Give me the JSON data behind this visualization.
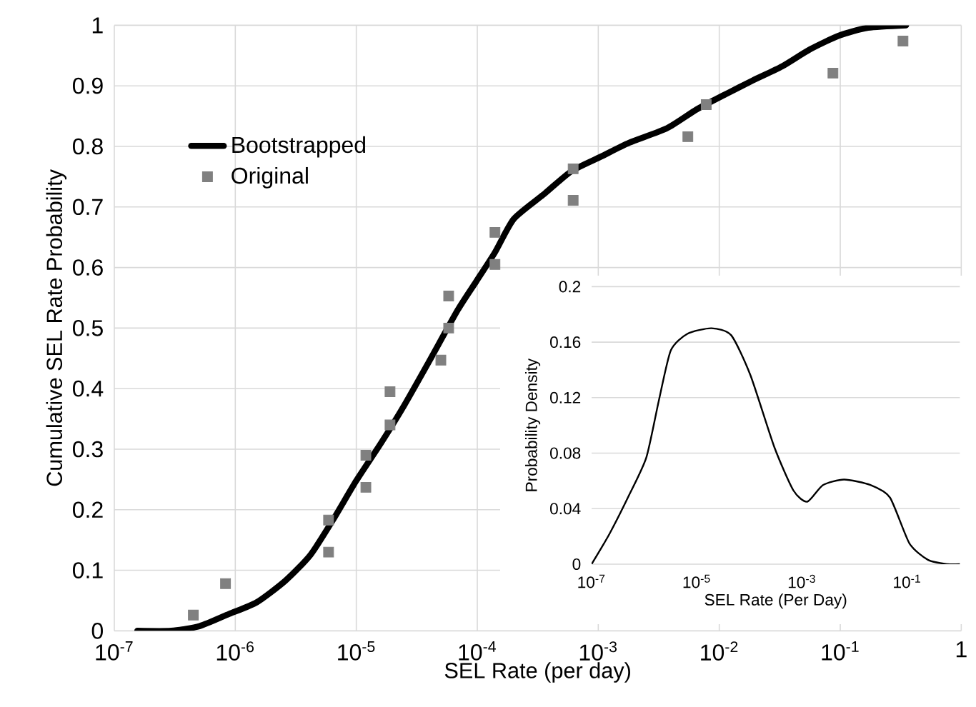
{
  "chart_data": [
    {
      "type": "line",
      "xlabel": "SEL Rate (per day)",
      "ylabel": "Cumulative SEL Rate Probability",
      "log": "x",
      "grid": true,
      "legend": "top left",
      "xlim": [
        1e-07,
        1
      ],
      "ylim": [
        0,
        1
      ],
      "xticks": [
        {
          "value": 1e-07,
          "label": "10$^{-7}$"
        },
        {
          "value": 1e-06,
          "label": "10$^{-6}$"
        },
        {
          "value": 1e-05,
          "label": "10$^{-5}$"
        },
        {
          "value": 0.0001,
          "label": "10$^{-4}$"
        },
        {
          "value": 0.001,
          "label": "10$^{-3}$"
        },
        {
          "value": 0.01,
          "label": "10$^{-2}$"
        },
        {
          "value": 0.1,
          "label": "10$^{-1}$"
        },
        1
      ],
      "yticks": [
        0,
        0.1,
        0.2,
        0.3,
        0.4,
        0.5,
        0.6,
        0.7,
        0.8,
        0.9,
        1
      ],
      "series": [
        {
          "name": "Bootstrapped",
          "type": "line",
          "marker": "none",
          "color": "#000000",
          "x": [
            1.55e-07,
            2.95e-07,
            5.1e-07,
            8.9e-07,
            1.5e-06,
            2.6e-06,
            4.2e-06,
            6.5e-06,
            1e-05,
            1.6e-05,
            2.5e-05,
            4e-05,
            6.9e-05,
            9.8e-05,
            0.00014,
            0.0002,
            0.00035,
            0.0006,
            0.00105,
            0.0018,
            0.0037,
            0.0065,
            0.011,
            0.019,
            0.033,
            0.056,
            0.098,
            0.17,
            0.35
          ],
          "values": [
            0,
            0,
            0.008,
            0.028,
            0.047,
            0.083,
            0.126,
            0.185,
            0.248,
            0.31,
            0.373,
            0.445,
            0.53,
            0.577,
            0.625,
            0.68,
            0.72,
            0.759,
            0.783,
            0.806,
            0.83,
            0.861,
            0.885,
            0.909,
            0.932,
            0.96,
            0.983,
            0.996,
            1.0
          ]
        },
        {
          "name": "Original",
          "type": "scatter",
          "marker": "square",
          "color": "#808080",
          "x": [
            4.5e-07,
            8.3e-07,
            5.9e-06,
            5.9e-06,
            1.2e-05,
            1.2e-05,
            1.9e-05,
            1.9e-05,
            5e-05,
            5.8e-05,
            5.8e-05,
            0.00014,
            0.00014,
            0.00062,
            0.00062,
            0.0055,
            0.0078,
            0.087,
            0.33
          ],
          "values": [
            0.026,
            0.078,
            0.13,
            0.183,
            0.237,
            0.29,
            0.34,
            0.395,
            0.447,
            0.5,
            0.553,
            0.605,
            0.658,
            0.711,
            0.763,
            0.816,
            0.869,
            0.921,
            0.974
          ]
        }
      ]
    },
    {
      "type": "line",
      "xlabel": "SEL Rate (Per Day)",
      "ylabel": "Probability Density",
      "log": "x",
      "grid": "y",
      "xlim": [
        1e-07,
        1
      ],
      "ylim": [
        0,
        0.2
      ],
      "xticks": [
        {
          "value": 1e-07,
          "label": "10$^{-7}$"
        },
        {
          "value": 1e-05,
          "label": "10$^{-5}$"
        },
        {
          "value": 0.001,
          "label": "10$^{-3}$"
        },
        {
          "value": 0.1,
          "label": "10$^{-1}$"
        }
      ],
      "yticks": [
        0,
        0.04,
        0.08,
        0.12,
        0.16,
        0.2
      ],
      "series": [
        {
          "color": "#000000",
          "x": [
            1e-07,
            2.2e-07,
            5.2e-07,
            1.1e-06,
            1.9e-06,
            3.2e-06,
            6.6e-06,
            1.9e-05,
            4.5e-05,
            0.000105,
            0.0003,
            0.00069,
            0.00126,
            0.0025,
            0.0063,
            0.02,
            0.047,
            0.11,
            0.25,
            0.59,
            1
          ],
          "values": [
            0,
            0.022,
            0.05,
            0.077,
            0.118,
            0.154,
            0.166,
            0.17,
            0.165,
            0.136,
            0.084,
            0.053,
            0.045,
            0.057,
            0.061,
            0.057,
            0.048,
            0.015,
            0.003,
            0,
            0
          ]
        }
      ]
    }
  ]
}
